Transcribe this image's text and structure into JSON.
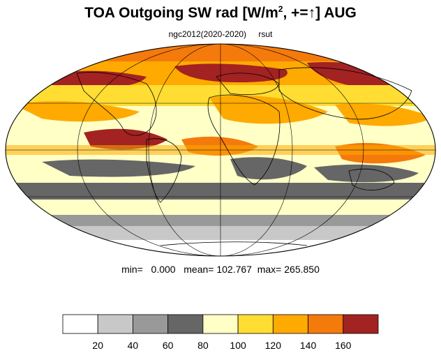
{
  "title": {
    "main": "TOA Outgoing SW rad [W/m",
    "sup": "2",
    "tail": ", +=↑] AUG"
  },
  "subtitle": {
    "run": "ngc2012(2020-2020)",
    "variable": "rsut"
  },
  "stats": {
    "min_label": "min=",
    "min_value": "0.000",
    "mean_label": "mean=",
    "mean_value": "102.767",
    "max_label": "max=",
    "max_value": "265.850"
  },
  "colorbar": {
    "colors": [
      "#ffffff",
      "#c8c8c8",
      "#999999",
      "#666666",
      "#ffffc6",
      "#ffdd33",
      "#ffaa00",
      "#f47a0c",
      "#a32222"
    ],
    "labels": [
      "20",
      "40",
      "60",
      "80",
      "100",
      "120",
      "140",
      "160"
    ]
  },
  "map": {
    "projection": "mollweide",
    "ocean_fill": "#ffffc6",
    "land_outline_color": "#000000",
    "grid_color": "#000000"
  }
}
